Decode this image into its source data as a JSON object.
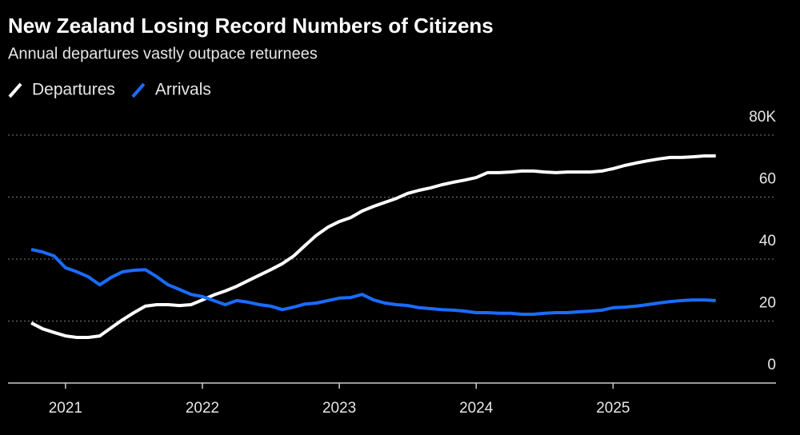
{
  "chart_data": {
    "type": "line",
    "title": "New Zealand Losing Record Numbers of Citizens",
    "subtitle": "Annual departures vastly outpace returnees",
    "x": [
      2020.75,
      2020.833,
      2020.917,
      2021,
      2021.083,
      2021.167,
      2021.25,
      2021.333,
      2021.417,
      2021.5,
      2021.583,
      2021.667,
      2021.75,
      2021.833,
      2021.917,
      2022,
      2022.083,
      2022.167,
      2022.25,
      2022.333,
      2022.417,
      2022.5,
      2022.583,
      2022.667,
      2022.75,
      2022.833,
      2022.917,
      2023,
      2023.083,
      2023.167,
      2023.25,
      2023.333,
      2023.417,
      2023.5,
      2023.583,
      2023.667,
      2023.75,
      2023.833,
      2023.917,
      2024,
      2024.083,
      2024.167,
      2024.25,
      2024.333,
      2024.417,
      2024.5,
      2024.583,
      2024.667,
      2024.75,
      2024.833,
      2024.917,
      2025,
      2025.083,
      2025.167,
      2025.25,
      2025.333,
      2025.417,
      2025.5,
      2025.583,
      2025.667,
      2025.75
    ],
    "series": [
      {
        "name": "Departures",
        "color": "#ffffff",
        "values": [
          19.4,
          17.5,
          16.3,
          15.2,
          14.7,
          14.7,
          15.2,
          17.8,
          20.4,
          22.7,
          24.8,
          25.3,
          25.3,
          25,
          25.3,
          26.8,
          28.4,
          29.7,
          31.2,
          33,
          34.8,
          36.6,
          38.5,
          41,
          44.4,
          47.7,
          50.3,
          52.1,
          53.4,
          55.5,
          57,
          58.3,
          59.6,
          61.2,
          62.2,
          63,
          64,
          64.8,
          65.5,
          66.3,
          67.9,
          67.9,
          68.1,
          68.4,
          68.4,
          68.1,
          67.9,
          68.1,
          68.1,
          68.1,
          68.4,
          69.2,
          70.2,
          71,
          71.7,
          72.3,
          72.8,
          72.8,
          73,
          73.3,
          73.3
        ]
      },
      {
        "name": "Arrivals",
        "color": "#1a6cff",
        "values": [
          43.1,
          42.3,
          41,
          37.2,
          35.9,
          34.3,
          31.7,
          34.1,
          35.9,
          36.4,
          36.6,
          34.3,
          31.7,
          30.2,
          28.6,
          27.9,
          26.6,
          25.3,
          26.6,
          26.1,
          25.3,
          24.8,
          23.7,
          24.5,
          25.5,
          25.8,
          26.6,
          27.4,
          27.6,
          28.6,
          26.8,
          25.8,
          25.3,
          25,
          24.3,
          24,
          23.7,
          23.5,
          23.2,
          22.7,
          22.7,
          22.5,
          22.5,
          22.2,
          22.2,
          22.5,
          22.7,
          22.7,
          23,
          23.2,
          23.5,
          24.3,
          24.5,
          24.8,
          25.3,
          25.8,
          26.3,
          26.6,
          26.8,
          26.8,
          26.6
        ]
      }
    ],
    "xlim": [
      2020.58,
      2026.19
    ],
    "xticks": [
      2021,
      2022,
      2023,
      2024,
      2025
    ],
    "ylim": [
      0,
      80
    ],
    "yticks": [
      0,
      20,
      40,
      {
        "value": 60,
        "label": "60"
      },
      {
        "value": 80,
        "label": "80K"
      }
    ],
    "grid": true
  }
}
